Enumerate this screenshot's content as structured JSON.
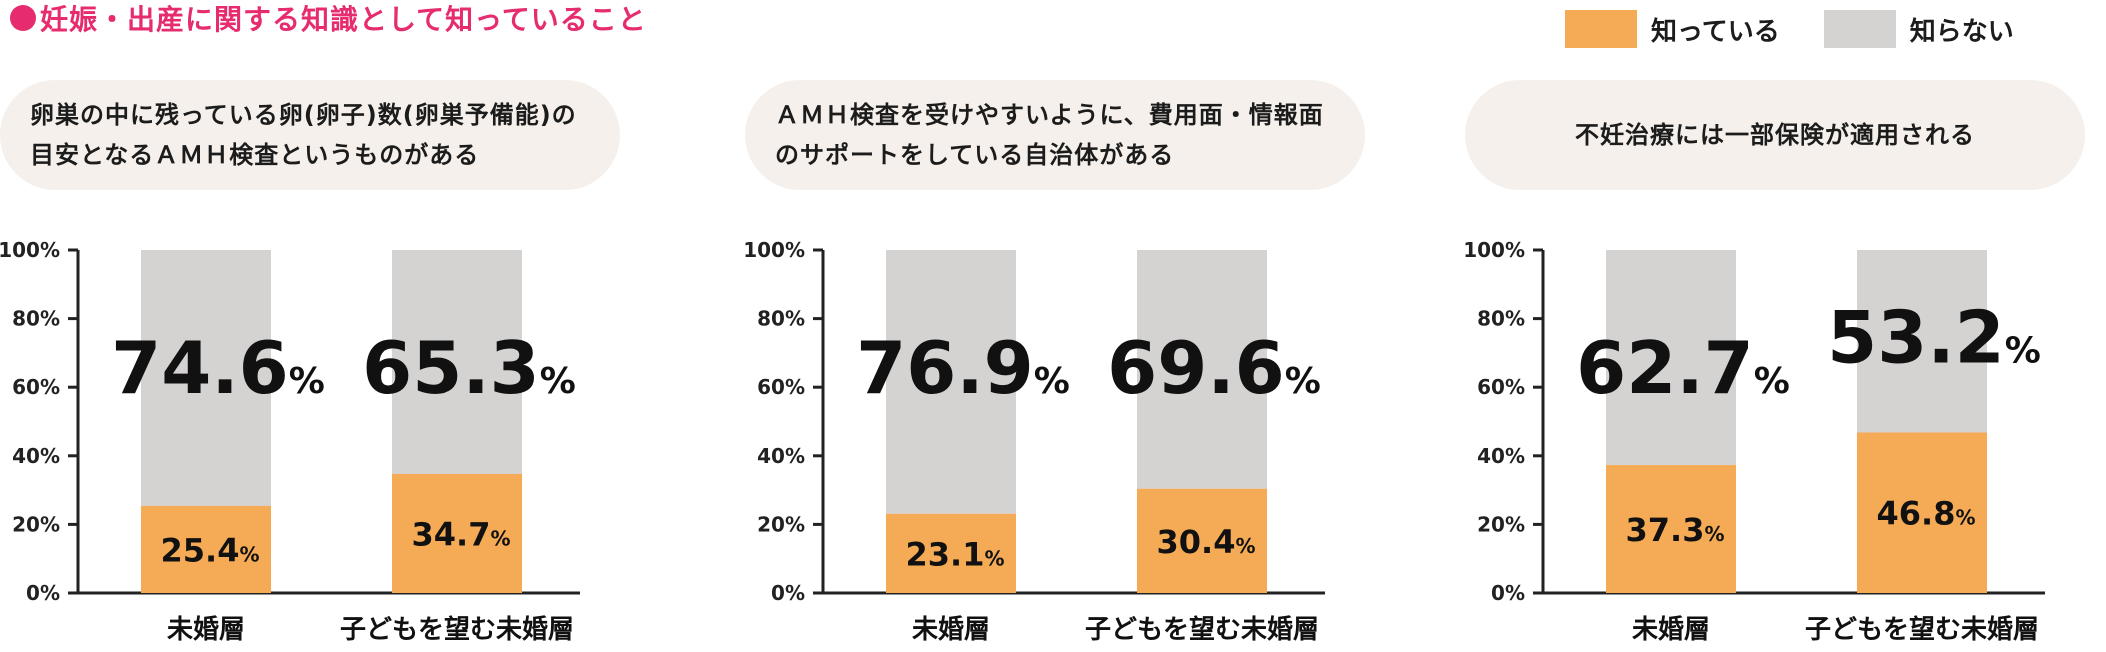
{
  "header": {
    "title": "妊娠・出産に関する知識として知っていること"
  },
  "legend": {
    "known": {
      "label": "知っている",
      "color": "#f5ab56"
    },
    "unknown": {
      "label": "知らない",
      "color": "#d5d2d2"
    }
  },
  "panels": [
    {
      "question": "卵巣の中に残っている卵(卵子)数(卵巣予備能)の目安となるＡＭＨ検査というものがある"
    },
    {
      "question": "ＡＭＨ検査を受けやすいように、費用面・情報面のサポートをしている自治体がある"
    },
    {
      "question": "不妊治療には一部保険が適用される"
    }
  ],
  "chart_data": [
    {
      "type": "bar",
      "stacked": true,
      "title": "卵巣の中に残っている卵(卵子)数(卵巣予備能)の目安となるＡＭＨ検査というものがある",
      "categories": [
        "未婚層",
        "子どもを望む未婚層"
      ],
      "series": [
        {
          "name": "知っている",
          "values": [
            25.4,
            34.7
          ]
        },
        {
          "name": "知らない",
          "values": [
            74.6,
            65.3
          ]
        }
      ],
      "yticks": [
        "0%",
        "20%",
        "40%",
        "60%",
        "80%",
        "100%"
      ],
      "ylim": [
        0,
        100
      ],
      "unit": "%"
    },
    {
      "type": "bar",
      "stacked": true,
      "title": "ＡＭＨ検査を受けやすいように、費用面・情報面のサポートをしている自治体がある",
      "categories": [
        "未婚層",
        "子どもを望む未婚層"
      ],
      "series": [
        {
          "name": "知っている",
          "values": [
            23.1,
            30.4
          ]
        },
        {
          "name": "知らない",
          "values": [
            76.9,
            69.6
          ]
        }
      ],
      "yticks": [
        "0%",
        "20%",
        "40%",
        "60%",
        "80%",
        "100%"
      ],
      "ylim": [
        0,
        100
      ],
      "unit": "%"
    },
    {
      "type": "bar",
      "stacked": true,
      "title": "不妊治療には一部保険が適用される",
      "categories": [
        "未婚層",
        "子どもを望む未婚層"
      ],
      "series": [
        {
          "name": "知っている",
          "values": [
            37.3,
            46.8
          ]
        },
        {
          "name": "知らない",
          "values": [
            62.7,
            53.2
          ]
        }
      ],
      "yticks": [
        "0%",
        "20%",
        "40%",
        "60%",
        "80%",
        "100%"
      ],
      "ylim": [
        0,
        100
      ],
      "unit": "%"
    }
  ]
}
